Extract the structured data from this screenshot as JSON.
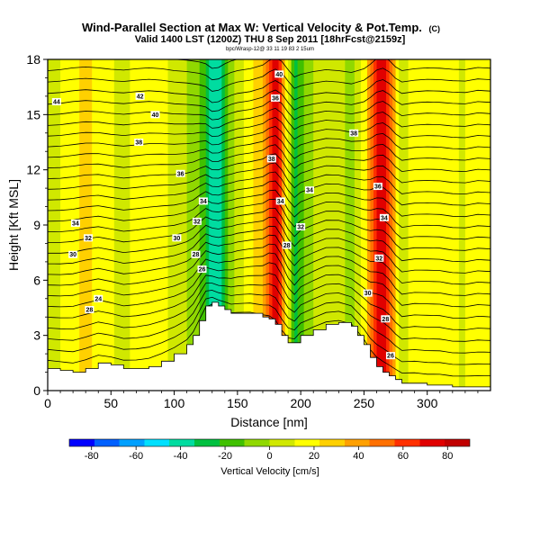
{
  "chart_data": {
    "type": "heatmap",
    "title": "Wind-Parallel Section at Max W: Vertical Velocity & Pot.Temp.",
    "title_suffix": "(C)",
    "subtitle": "Valid 1400 LST (1200Z) THU 8 Sep 2011 [18hrFcst@2159z]",
    "info_line": "bpc/Wrasp-12@ 33 11 19 83 2 15um",
    "xlabel": "Distance [nm]",
    "ylabel": "Height [Kft MSL]",
    "xlim": [
      0,
      350
    ],
    "ylim": [
      0,
      18
    ],
    "x_ticks": [
      0,
      50,
      100,
      150,
      200,
      250,
      300
    ],
    "y_ticks": [
      0,
      3,
      6,
      9,
      12,
      15,
      18
    ],
    "colorbar": {
      "label": "Vertical Velocity [cm/s]",
      "ticks": [
        -80,
        -60,
        -40,
        -20,
        0,
        20,
        40,
        60,
        80
      ],
      "range": [
        -90,
        90
      ],
      "colors": [
        "#0000ff",
        "#0060ff",
        "#00a0ff",
        "#00e0ff",
        "#00dca0",
        "#00c040",
        "#40c000",
        "#90d800",
        "#d0e800",
        "#ffff00",
        "#ffd000",
        "#ffa000",
        "#ff7000",
        "#ff3000",
        "#e00000",
        "#c00000"
      ]
    },
    "vertical_velocity_profile": {
      "x": [
        0,
        10,
        20,
        30,
        40,
        50,
        60,
        70,
        80,
        90,
        100,
        110,
        120,
        125,
        130,
        135,
        140,
        145,
        150,
        160,
        170,
        175,
        180,
        185,
        190,
        195,
        200,
        210,
        220,
        230,
        240,
        250,
        255,
        260,
        265,
        270,
        275,
        280,
        290,
        300,
        310,
        320,
        330,
        340,
        350
      ],
      "w": [
        5,
        10,
        20,
        25,
        20,
        12,
        8,
        15,
        20,
        15,
        5,
        0,
        -10,
        -20,
        -45,
        -40,
        -20,
        -5,
        5,
        15,
        35,
        60,
        75,
        55,
        10,
        -30,
        -15,
        0,
        10,
        5,
        -5,
        15,
        40,
        70,
        80,
        60,
        25,
        5,
        15,
        20,
        18,
        12,
        10,
        22,
        18
      ]
    },
    "terrain_height_kft": {
      "x": [
        0,
        10,
        20,
        30,
        40,
        50,
        60,
        70,
        80,
        90,
        100,
        110,
        115,
        120,
        125,
        130,
        135,
        140,
        145,
        150,
        160,
        170,
        175,
        180,
        185,
        190,
        195,
        200,
        210,
        220,
        230,
        240,
        245,
        250,
        255,
        260,
        265,
        270,
        275,
        280,
        290,
        300,
        310,
        320,
        330,
        340,
        350
      ],
      "h": [
        1.2,
        1.1,
        1.0,
        1.2,
        1.5,
        1.4,
        1.2,
        1.2,
        1.3,
        1.6,
        2.0,
        2.5,
        3.0,
        3.8,
        4.6,
        4.8,
        4.6,
        4.4,
        4.2,
        4.2,
        4.2,
        4.0,
        3.9,
        3.6,
        3.0,
        2.6,
        2.6,
        3.0,
        3.3,
        3.6,
        3.7,
        3.5,
        3.0,
        2.5,
        1.8,
        1.3,
        1.0,
        0.8,
        0.6,
        0.4,
        0.4,
        0.3,
        0.3,
        0.2,
        0.2,
        0.2,
        0.2
      ]
    },
    "contour_labels": [
      {
        "text": "44",
        "x": 7,
        "y": 15.7
      },
      {
        "text": "42",
        "x": 73,
        "y": 16.0
      },
      {
        "text": "40",
        "x": 85,
        "y": 15.0
      },
      {
        "text": "38",
        "x": 72,
        "y": 13.5
      },
      {
        "text": "36",
        "x": 105,
        "y": 11.8
      },
      {
        "text": "34",
        "x": 22,
        "y": 9.1
      },
      {
        "text": "32",
        "x": 32,
        "y": 8.3
      },
      {
        "text": "30",
        "x": 20,
        "y": 7.4
      },
      {
        "text": "34",
        "x": 123,
        "y": 10.3
      },
      {
        "text": "32",
        "x": 118,
        "y": 9.2
      },
      {
        "text": "30",
        "x": 102,
        "y": 8.3
      },
      {
        "text": "28",
        "x": 117,
        "y": 7.4
      },
      {
        "text": "26",
        "x": 122,
        "y": 6.6
      },
      {
        "text": "24",
        "x": 40,
        "y": 5.0
      },
      {
        "text": "28",
        "x": 33,
        "y": 4.4
      },
      {
        "text": "40",
        "x": 183,
        "y": 17.2
      },
      {
        "text": "36",
        "x": 180,
        "y": 15.9
      },
      {
        "text": "38",
        "x": 177,
        "y": 12.6
      },
      {
        "text": "34",
        "x": 184,
        "y": 10.3
      },
      {
        "text": "34",
        "x": 207,
        "y": 10.9
      },
      {
        "text": "32",
        "x": 200,
        "y": 8.9
      },
      {
        "text": "28",
        "x": 189,
        "y": 7.9
      },
      {
        "text": "38",
        "x": 242,
        "y": 14.0
      },
      {
        "text": "36",
        "x": 261,
        "y": 11.1
      },
      {
        "text": "34",
        "x": 266,
        "y": 9.4
      },
      {
        "text": "32",
        "x": 262,
        "y": 7.2
      },
      {
        "text": "30",
        "x": 253,
        "y": 5.3
      },
      {
        "text": "28",
        "x": 267,
        "y": 3.9
      },
      {
        "text": "26",
        "x": 271,
        "y": 1.9
      }
    ]
  }
}
